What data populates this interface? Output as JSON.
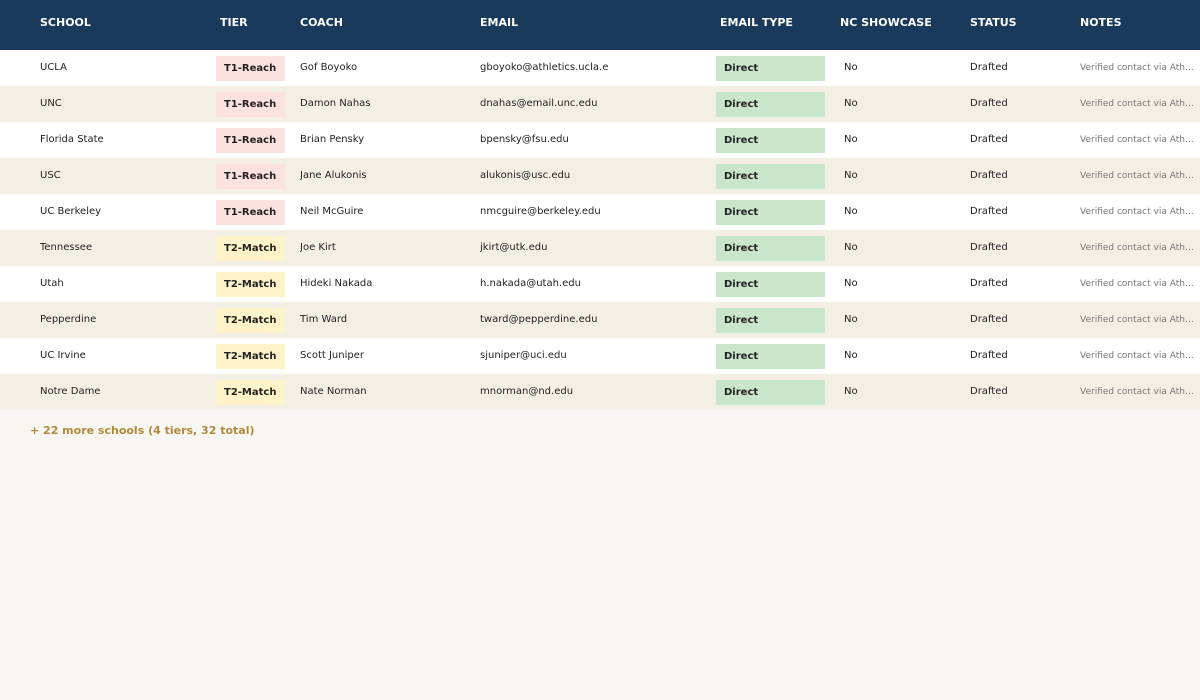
{
  "table": {
    "header": [
      "SCHOOL",
      "TIER",
      "COACH",
      "EMAIL",
      "EMAIL TYPE",
      "NC SHOWCASE",
      "STATUS",
      "NOTES"
    ],
    "rows": [
      [
        "UCLA",
        "T1-Reach",
        "Gof Boyoko",
        "gboyoko@athletics.ucla.e",
        "Direct",
        "No",
        "Drafted",
        "Verified contact via Ath…"
      ],
      [
        "UNC",
        "T1-Reach",
        "Damon Nahas",
        "dnahas@email.unc.edu",
        "Direct",
        "No",
        "Drafted",
        "Verified contact via Ath…"
      ],
      [
        "Florida State",
        "T1-Reach",
        "Brian Pensky",
        "bpensky@fsu.edu",
        "Direct",
        "No",
        "Drafted",
        "Verified contact via Ath…"
      ],
      [
        "USC",
        "T1-Reach",
        "Jane Alukonis",
        "alukonis@usc.edu",
        "Direct",
        "No",
        "Drafted",
        "Verified contact via Ath…"
      ],
      [
        "UC Berkeley",
        "T1-Reach",
        "Neil McGuire",
        "nmcguire@berkeley.edu",
        "Direct",
        "No",
        "Drafted",
        "Verified contact via Ath…"
      ],
      [
        "Tennessee",
        "T2-Match",
        "Joe Kirt",
        "jkirt@utk.edu",
        "Direct",
        "No",
        "Drafted",
        "Verified contact via Ath…"
      ],
      [
        "Utah",
        "T2-Match",
        "Hideki Nakada",
        "h.nakada@utah.edu",
        "Direct",
        "No",
        "Drafted",
        "Verified contact via Ath…"
      ],
      [
        "Pepperdine",
        "T2-Match",
        "Tim Ward",
        "tward@pepperdine.edu",
        "Direct",
        "No",
        "Drafted",
        "Verified contact via Ath…"
      ],
      [
        "UC Irvine",
        "T2-Match",
        "Scott Juniper",
        "sjuniper@uci.edu",
        "Direct",
        "No",
        "Drafted",
        "Verified contact via Ath…"
      ],
      [
        "Notre Dame",
        "T2-Match",
        "Nate Norman",
        "mnorman@nd.edu",
        "Direct",
        "No",
        "Drafted",
        "Verified contact via Ath…"
      ]
    ],
    "badge_colors": {
      "T1-Reach": "#fde1e1",
      "T2-Match": "#fef3c8",
      "Direct": "#c9e6ca"
    }
  },
  "footer": "+ 22 more schools (4 tiers, 32 total)"
}
